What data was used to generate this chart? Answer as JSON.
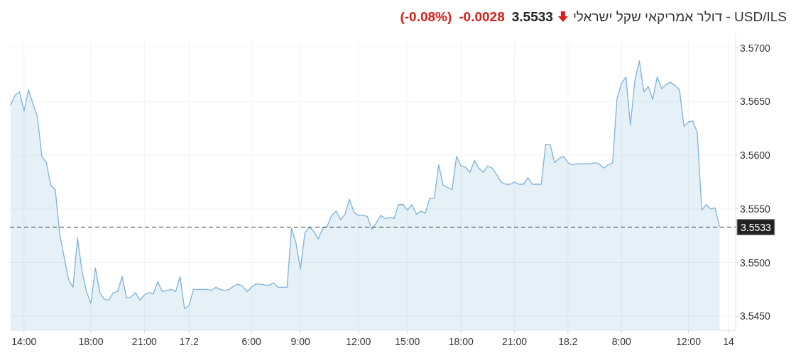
{
  "chart_data": {
    "type": "area",
    "title": "USD/ILS - דולר אמריקאי שקל ישראלי",
    "annotations": [
      "3.5533",
      "-0.0028",
      "(-0.08%)"
    ],
    "categories": [
      null,
      null,
      null,
      "14:00",
      null,
      null,
      null,
      null,
      null,
      null,
      null,
      null,
      null,
      null,
      null,
      null,
      null,
      null,
      "18:00",
      null,
      null,
      null,
      null,
      null,
      null,
      null,
      null,
      null,
      null,
      null,
      "21:00",
      null,
      null,
      null,
      null,
      null,
      null,
      null,
      null,
      null,
      "17.2",
      null,
      null,
      null,
      null,
      null,
      null,
      null,
      null,
      null,
      null,
      null,
      null,
      null,
      "6:00",
      null,
      null,
      null,
      null,
      null,
      null,
      null,
      null,
      null,
      null,
      "9:00",
      null,
      null,
      null,
      null,
      null,
      null,
      null,
      null,
      null,
      null,
      null,
      null,
      "12:00",
      null,
      null,
      null,
      null,
      null,
      null,
      null,
      null,
      null,
      null,
      "15:00",
      null,
      null,
      null,
      null,
      null,
      null,
      null,
      null,
      null,
      null,
      null,
      "18:00",
      null,
      null,
      null,
      null,
      null,
      null,
      null,
      null,
      null,
      null,
      null,
      "21:00",
      null,
      null,
      null,
      null,
      null,
      null,
      null,
      null,
      null,
      null,
      null,
      "18.2",
      null,
      null,
      null,
      null,
      null,
      null,
      null,
      null,
      null,
      null,
      null,
      "8:00",
      null,
      null,
      null,
      null,
      null,
      null,
      null,
      null,
      null,
      null,
      null,
      null,
      null,
      null,
      "12:00",
      null,
      null,
      null,
      null,
      null,
      null,
      null,
      null,
      "14"
    ],
    "series": [
      {
        "color": "#7fb2d9",
        "values": [
          3.5647,
          3.5656,
          3.5659,
          3.5641,
          3.5661,
          3.5648,
          3.5636,
          3.5599,
          3.5593,
          3.5572,
          3.5568,
          3.5527,
          3.5505,
          3.5484,
          3.5477,
          3.5523,
          3.5492,
          3.5473,
          3.5462,
          3.5495,
          3.5472,
          3.5466,
          3.5465,
          3.5472,
          3.5473,
          3.5487,
          3.5467,
          3.5468,
          3.5472,
          3.5465,
          3.547,
          3.5472,
          3.5471,
          3.5482,
          3.5473,
          3.5474,
          3.5475,
          3.5473,
          3.5487,
          3.5457,
          3.546,
          3.5475,
          3.5475,
          3.5475,
          3.5475,
          3.5474,
          3.5477,
          3.5475,
          3.5474,
          3.5475,
          3.5478,
          3.548,
          3.5478,
          3.5473,
          3.5477,
          3.548,
          3.548,
          3.5479,
          3.5479,
          3.5481,
          3.5477,
          3.5477,
          3.5477,
          3.5532,
          3.5518,
          3.5494,
          3.5528,
          3.5533,
          3.5529,
          3.5522,
          3.5532,
          3.5534,
          3.5544,
          3.5548,
          3.554,
          3.5545,
          3.5559,
          3.5547,
          3.5544,
          3.5544,
          3.5543,
          3.5531,
          3.5537,
          3.5544,
          3.5541,
          3.5542,
          3.5541,
          3.5554,
          3.5554,
          3.5549,
          3.5554,
          3.5545,
          3.5548,
          3.5546,
          3.556,
          3.556,
          3.5591,
          3.5572,
          3.557,
          3.5568,
          3.5599,
          3.559,
          3.5589,
          3.5584,
          3.5595,
          3.5588,
          3.5584,
          3.559,
          3.5588,
          3.5582,
          3.5575,
          3.5573,
          3.5573,
          3.5575,
          3.5573,
          3.5573,
          3.5579,
          3.5573,
          3.5573,
          3.5573,
          3.561,
          3.561,
          3.5593,
          3.5597,
          3.5599,
          3.5593,
          3.5591,
          3.5592,
          3.5592,
          3.5592,
          3.5592,
          3.5593,
          3.5592,
          3.5588,
          3.5591,
          3.5593,
          3.5653,
          3.5667,
          3.5673,
          3.5628,
          3.567,
          3.5688,
          3.5659,
          3.5664,
          3.5652,
          3.5673,
          3.5662,
          3.5666,
          3.5668,
          3.5665,
          3.5661,
          3.5627,
          3.5631,
          3.5632,
          3.5621,
          3.5549,
          3.5554,
          3.555,
          3.5551,
          3.5533,
          null,
          null
        ]
      }
    ],
    "ylim": [
      3.5437,
      3.5707
    ],
    "yticks": [
      {
        "value": 3.545,
        "label": "3.5450"
      },
      {
        "value": 3.55,
        "label": "3.5500"
      },
      {
        "value": 3.555,
        "label": "3.5550"
      },
      {
        "value": 3.56,
        "label": "3.5600"
      },
      {
        "value": 3.565,
        "label": "3.5650"
      },
      {
        "value": 3.57,
        "label": "3.5700"
      }
    ],
    "ref_lines": [
      {
        "axis": "y",
        "value": 3.5533,
        "label": "3.5533",
        "color": "#333333",
        "line_style": "dashed"
      }
    ],
    "grid": true
  }
}
